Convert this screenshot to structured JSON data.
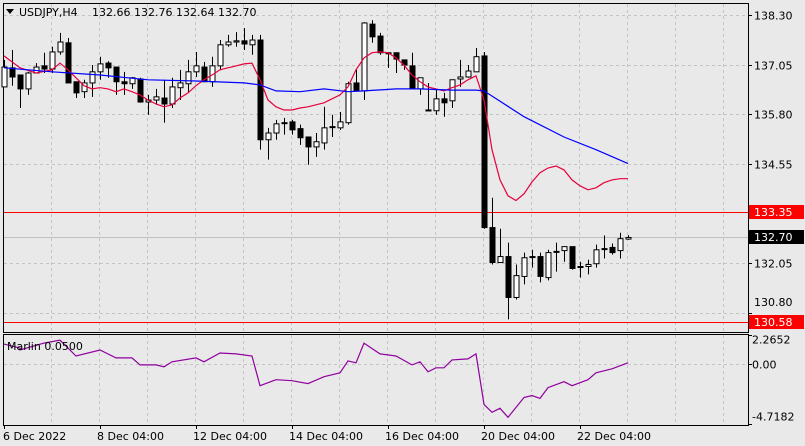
{
  "header": {
    "symbol": "USDJPY,H4",
    "ohlc": "132.66 132.76 132.64 132.70",
    "menu_icon": "triangle-down-icon"
  },
  "colors": {
    "background": "#e9e9e9",
    "fast_ma": "#e8003c",
    "slow_ma": "#0000ff",
    "level_line": "#ff0000",
    "bid_line": "#c0c0c0",
    "indicator": "#9000a0",
    "level_label_bg": "#ff0000",
    "bid_label_bg": "#000000"
  },
  "chart_data": [
    {
      "type": "candlestick",
      "title": "USDJPY,H4",
      "ylim": [
        130.58,
        138.55
      ],
      "grid": true,
      "price_ticks": [
        "138.30",
        "137.05",
        "135.80",
        "134.55",
        "132.05",
        "130.80"
      ],
      "x_ticks": [
        {
          "candle": 1,
          "label": "6 Dec 2022"
        },
        {
          "candle": 13,
          "label": "8 Dec 04:00"
        },
        {
          "candle": 25,
          "label": "12 Dec 04:00"
        },
        {
          "candle": 37,
          "label": "14 Dec 04:00"
        },
        {
          "candle": 49,
          "label": "16 Dec 04:00"
        },
        {
          "candle": 61,
          "label": "20 Dec 04:00"
        },
        {
          "candle": 73,
          "label": "22 Dec 04:00"
        }
      ],
      "levels": [
        {
          "price": 133.35,
          "label": "133.35",
          "kind": "level"
        },
        {
          "price": 130.58,
          "label": "130.58",
          "kind": "level"
        },
        {
          "price": 132.7,
          "label": "132.70",
          "kind": "bid"
        }
      ],
      "candles_ohlc": [
        [
          136.49,
          137.17,
          136.49,
          136.99
        ],
        [
          136.97,
          137.42,
          136.52,
          136.74
        ],
        [
          136.79,
          136.79,
          135.96,
          136.44
        ],
        [
          136.44,
          136.87,
          136.29,
          136.84
        ],
        [
          136.84,
          137.09,
          136.84,
          136.99
        ],
        [
          137.02,
          137.35,
          136.84,
          136.94
        ],
        [
          136.94,
          137.5,
          136.84,
          137.37
        ],
        [
          137.37,
          137.85,
          137.3,
          137.62
        ],
        [
          137.6,
          137.72,
          136.59,
          136.59
        ],
        [
          136.62,
          136.62,
          136.21,
          136.34
        ],
        [
          136.37,
          136.67,
          136.21,
          136.59
        ],
        [
          136.59,
          137.04,
          136.24,
          136.87
        ],
        [
          136.87,
          137.25,
          136.67,
          137.07
        ],
        [
          137.09,
          137.14,
          136.72,
          136.97
        ],
        [
          136.99,
          136.99,
          136.29,
          136.62
        ],
        [
          136.62,
          136.87,
          136.29,
          136.57
        ],
        [
          136.57,
          136.74,
          136.44,
          136.72
        ],
        [
          136.69,
          136.72,
          136.09,
          136.11
        ],
        [
          136.11,
          136.29,
          135.79,
          136.16
        ],
        [
          136.16,
          136.44,
          136.04,
          136.24
        ],
        [
          136.21,
          136.67,
          135.59,
          136.06
        ],
        [
          136.06,
          136.72,
          135.96,
          136.49
        ],
        [
          136.47,
          136.92,
          136.16,
          136.59
        ],
        [
          136.57,
          137.17,
          136.34,
          136.87
        ],
        [
          136.87,
          137.37,
          136.74,
          137.02
        ],
        [
          136.99,
          137.12,
          136.62,
          136.62
        ],
        [
          136.62,
          137.25,
          136.49,
          137.02
        ],
        [
          137.02,
          137.67,
          136.92,
          137.55
        ],
        [
          137.55,
          137.8,
          137.5,
          137.62
        ],
        [
          137.62,
          137.87,
          137.5,
          137.65
        ],
        [
          137.65,
          137.97,
          137.42,
          137.57
        ],
        [
          137.55,
          137.8,
          137.3,
          137.67
        ],
        [
          137.67,
          137.8,
          134.91,
          135.16
        ],
        [
          135.16,
          135.46,
          134.66,
          135.33
        ],
        [
          135.33,
          135.66,
          135.16,
          135.56
        ],
        [
          135.59,
          135.71,
          135.29,
          135.59
        ],
        [
          135.61,
          135.66,
          135.29,
          135.41
        ],
        [
          135.44,
          135.54,
          135.03,
          135.21
        ],
        [
          135.23,
          135.23,
          134.53,
          134.98
        ],
        [
          134.98,
          135.33,
          134.73,
          135.11
        ],
        [
          135.08,
          135.99,
          134.91,
          135.46
        ],
        [
          135.49,
          135.79,
          135.23,
          135.49
        ],
        [
          135.46,
          135.86,
          135.41,
          135.61
        ],
        [
          135.59,
          136.62,
          135.54,
          136.57
        ],
        [
          136.59,
          136.92,
          136.39,
          136.39
        ],
        [
          136.39,
          138.12,
          136.16,
          138.1
        ],
        [
          138.07,
          138.17,
          137.6,
          137.75
        ],
        [
          137.77,
          137.85,
          137.3,
          137.35
        ],
        [
          137.35,
          137.37,
          136.97,
          137.35
        ],
        [
          137.35,
          137.35,
          136.84,
          137.19
        ],
        [
          137.17,
          137.17,
          136.92,
          137.04
        ],
        [
          137.02,
          137.35,
          136.44,
          136.44
        ],
        [
          136.44,
          136.72,
          136.29,
          136.72
        ],
        [
          135.91,
          136.59,
          135.89,
          135.89
        ],
        [
          135.89,
          136.44,
          135.79,
          136.19
        ],
        [
          136.19,
          136.34,
          135.74,
          136.09
        ],
        [
          136.14,
          136.67,
          135.96,
          136.67
        ],
        [
          136.69,
          137.17,
          136.49,
          136.74
        ],
        [
          136.74,
          137.04,
          136.72,
          136.89
        ],
        [
          136.87,
          137.47,
          136.87,
          137.25
        ],
        [
          137.27,
          137.37,
          132.92,
          132.95
        ],
        [
          132.95,
          133.7,
          132.02,
          132.07
        ],
        [
          132.07,
          132.92,
          132.07,
          132.22
        ],
        [
          132.22,
          132.57,
          130.64,
          131.19
        ],
        [
          131.19,
          132.02,
          131.14,
          131.74
        ],
        [
          131.72,
          132.32,
          131.52,
          132.19
        ],
        [
          132.22,
          132.39,
          131.94,
          132.22
        ],
        [
          132.22,
          132.32,
          131.57,
          131.72
        ],
        [
          131.69,
          132.39,
          131.62,
          132.32
        ],
        [
          132.35,
          132.57,
          131.84,
          132.35
        ],
        [
          132.37,
          132.47,
          132.09,
          132.47
        ],
        [
          132.47,
          132.47,
          131.89,
          131.92
        ],
        [
          131.97,
          132.09,
          131.69,
          131.97
        ],
        [
          131.97,
          132.14,
          131.77,
          132.02
        ],
        [
          132.04,
          132.52,
          131.94,
          132.39
        ],
        [
          132.42,
          132.75,
          132.17,
          132.42
        ],
        [
          132.45,
          132.55,
          132.27,
          132.32
        ],
        [
          132.37,
          132.82,
          132.17,
          132.67
        ],
        [
          132.66,
          132.76,
          132.64,
          132.7
        ]
      ],
      "series": [
        {
          "kind": "fast_ma",
          "points": [
            [
              1,
              137.27
            ],
            [
              3,
              136.97
            ],
            [
              5,
              136.84
            ],
            [
              7,
              136.92
            ],
            [
              8,
              137.09
            ],
            [
              9,
              136.92
            ],
            [
              10,
              136.72
            ],
            [
              11,
              136.52
            ],
            [
              12,
              136.44
            ],
            [
              13,
              136.47
            ],
            [
              14,
              136.44
            ],
            [
              15,
              136.37
            ],
            [
              16,
              136.44
            ],
            [
              17,
              136.37
            ],
            [
              18,
              136.29
            ],
            [
              19,
              136.16
            ],
            [
              20,
              136.06
            ],
            [
              21,
              135.99
            ],
            [
              22,
              136.04
            ],
            [
              23,
              136.21
            ],
            [
              24,
              136.34
            ],
            [
              25,
              136.52
            ],
            [
              26,
              136.67
            ],
            [
              27,
              136.79
            ],
            [
              28,
              136.92
            ],
            [
              29,
              136.97
            ],
            [
              30,
              137.02
            ],
            [
              31,
              137.07
            ],
            [
              32,
              137.09
            ],
            [
              33,
              136.67
            ],
            [
              34,
              136.16
            ],
            [
              35,
              135.99
            ],
            [
              36,
              135.91
            ],
            [
              37,
              135.91
            ],
            [
              38,
              135.96
            ],
            [
              39,
              135.99
            ],
            [
              40,
              136.04
            ],
            [
              41,
              136.09
            ],
            [
              42,
              136.19
            ],
            [
              43,
              136.29
            ],
            [
              44,
              136.49
            ],
            [
              45,
              136.92
            ],
            [
              46,
              137.22
            ],
            [
              47,
              137.35
            ],
            [
              48,
              137.37
            ],
            [
              49,
              137.35
            ],
            [
              50,
              137.22
            ],
            [
              51,
              137.04
            ],
            [
              52,
              136.79
            ],
            [
              53,
              136.62
            ],
            [
              54,
              136.49
            ],
            [
              55,
              136.44
            ],
            [
              56,
              136.39
            ],
            [
              57,
              136.47
            ],
            [
              58,
              136.54
            ],
            [
              59,
              136.67
            ],
            [
              60,
              136.77
            ],
            [
              61,
              136.16
            ],
            [
              62,
              134.91
            ],
            [
              63,
              134.15
            ],
            [
              64,
              133.75
            ],
            [
              65,
              133.63
            ],
            [
              66,
              133.8
            ],
            [
              67,
              134.1
            ],
            [
              68,
              134.33
            ],
            [
              69,
              134.45
            ],
            [
              70,
              134.5
            ],
            [
              71,
              134.4
            ],
            [
              72,
              134.15
            ],
            [
              73,
              134.0
            ],
            [
              74,
              133.9
            ],
            [
              75,
              133.95
            ],
            [
              76,
              134.08
            ],
            [
              77,
              134.15
            ],
            [
              78,
              134.18
            ],
            [
              79,
              134.18
            ]
          ]
        },
        {
          "kind": "slow_ma",
          "points": [
            [
              1,
              136.97
            ],
            [
              7,
              136.87
            ],
            [
              13,
              136.79
            ],
            [
              19,
              136.67
            ],
            [
              25,
              136.64
            ],
            [
              31,
              136.59
            ],
            [
              33,
              136.54
            ],
            [
              35,
              136.39
            ],
            [
              38,
              136.37
            ],
            [
              41,
              136.44
            ],
            [
              44,
              136.37
            ],
            [
              46,
              136.39
            ],
            [
              50,
              136.44
            ],
            [
              53,
              136.44
            ],
            [
              57,
              136.41
            ],
            [
              60,
              136.41
            ],
            [
              61,
              136.39
            ],
            [
              66,
              135.74
            ],
            [
              71,
              135.23
            ],
            [
              75,
              134.91
            ],
            [
              79,
              134.56
            ]
          ]
        }
      ]
    },
    {
      "type": "line",
      "title": "Marlin 0.0500",
      "ylim": [
        -4.7182,
        2.2652
      ],
      "y_ticks": [
        "2.2652",
        "0.00",
        "-4.7182"
      ],
      "grid": true,
      "points": [
        [
          1,
          1.55
        ],
        [
          3,
          1.24
        ],
        [
          3,
          1.09
        ],
        [
          6,
          1.63
        ],
        [
          8,
          1.86
        ],
        [
          9,
          1.24
        ],
        [
          10,
          0.62
        ],
        [
          13,
          1.09
        ],
        [
          15,
          0.47
        ],
        [
          17,
          0.47
        ],
        [
          18,
          -0.08
        ],
        [
          20,
          -0.08
        ],
        [
          21,
          -0.23
        ],
        [
          22,
          0.16
        ],
        [
          25,
          0.47
        ],
        [
          26,
          0.16
        ],
        [
          28,
          0.85
        ],
        [
          30,
          0.78
        ],
        [
          32,
          0.62
        ],
        [
          33,
          -1.71
        ],
        [
          35,
          -1.24
        ],
        [
          37,
          -1.32
        ],
        [
          39,
          -1.55
        ],
        [
          41,
          -1.01
        ],
        [
          43,
          -0.7
        ],
        [
          44,
          0.23
        ],
        [
          45,
          0.08
        ],
        [
          46,
          1.63
        ],
        [
          48,
          0.78
        ],
        [
          50,
          0.62
        ],
        [
          52,
          -0.08
        ],
        [
          53,
          0.16
        ],
        [
          54,
          -0.62
        ],
        [
          55,
          -0.31
        ],
        [
          56,
          -0.31
        ],
        [
          57,
          0.31
        ],
        [
          59,
          0.39
        ],
        [
          60,
          0.78
        ],
        [
          61,
          -3.18
        ],
        [
          62,
          -3.8
        ],
        [
          63,
          -3.49
        ],
        [
          64,
          -4.19
        ],
        [
          66,
          -2.64
        ],
        [
          67,
          -2.48
        ],
        [
          68,
          -2.71
        ],
        [
          69,
          -1.86
        ],
        [
          71,
          -1.4
        ],
        [
          72,
          -1.71
        ],
        [
          74,
          -1.24
        ],
        [
          75,
          -0.7
        ],
        [
          77,
          -0.39
        ],
        [
          79,
          0.08
        ]
      ]
    }
  ]
}
